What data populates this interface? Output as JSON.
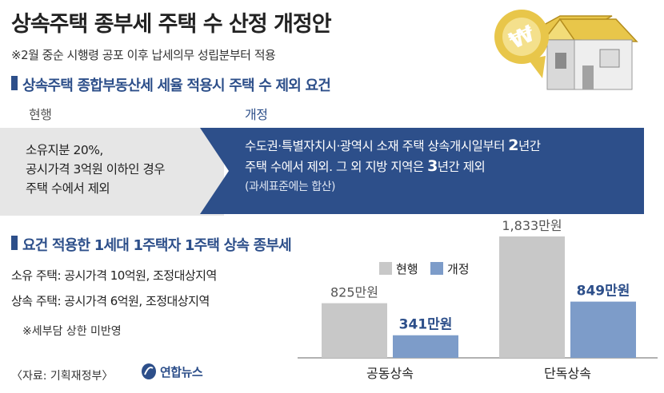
{
  "title": "상속주택 종부세 주택 수 산정 개정안",
  "subtitle": "※2월 중순 시행령 공포 이후 납세의무 성립분부터 적용",
  "section1": {
    "title": "상속주택 종합부동산세 세율 적용시 주택 수 제외 요건",
    "current_label": "현행",
    "revised_label": "개정",
    "current_lines": [
      "소유지분 20%,",
      "공시가격 3억원 이하인 경우",
      "주택 수에서 제외"
    ],
    "revised_line1_a": "수도권·특별자치시·광역시 소재 주택 상속개시일부터 ",
    "revised_line1_b": "2",
    "revised_line1_c": "년간",
    "revised_line2_a": "주택 수에서 제외. 그 외 지방 지역은 ",
    "revised_line2_b": "3",
    "revised_line2_c": "년간 제외",
    "revised_note": "(과세표준에는 합산)"
  },
  "section2": {
    "title": "요건 적용한 1세대 1주택자 1주택 상속 종부세",
    "own": "소유 주택: 공시가격 10억원, 조정대상지역",
    "inherited": "상속 주택: 공시가격 6억원, 조정대상지역",
    "note": "※세부담 상한 미반영"
  },
  "source": "〈자료: 기획재정부〉",
  "logo_text": "연합뉴스",
  "icons": [
    "won-coin-icon",
    "house-icon",
    "logo-icon"
  ],
  "colors": {
    "current": "#c8c8c8",
    "revised": "#7d9cc9",
    "accent": "#2d4f8a",
    "coin": "#e8c64a"
  },
  "chart_data": {
    "type": "bar",
    "categories": [
      "공동상속",
      "단독상속"
    ],
    "series": [
      {
        "name": "현행",
        "values": [
          825,
          1833
        ],
        "labels": [
          "825만원",
          "1,833만원"
        ]
      },
      {
        "name": "개정",
        "values": [
          341,
          849
        ],
        "labels": [
          "341만원",
          "849만원"
        ]
      }
    ],
    "unit": "만원",
    "legend": "top-left",
    "grid": false
  }
}
